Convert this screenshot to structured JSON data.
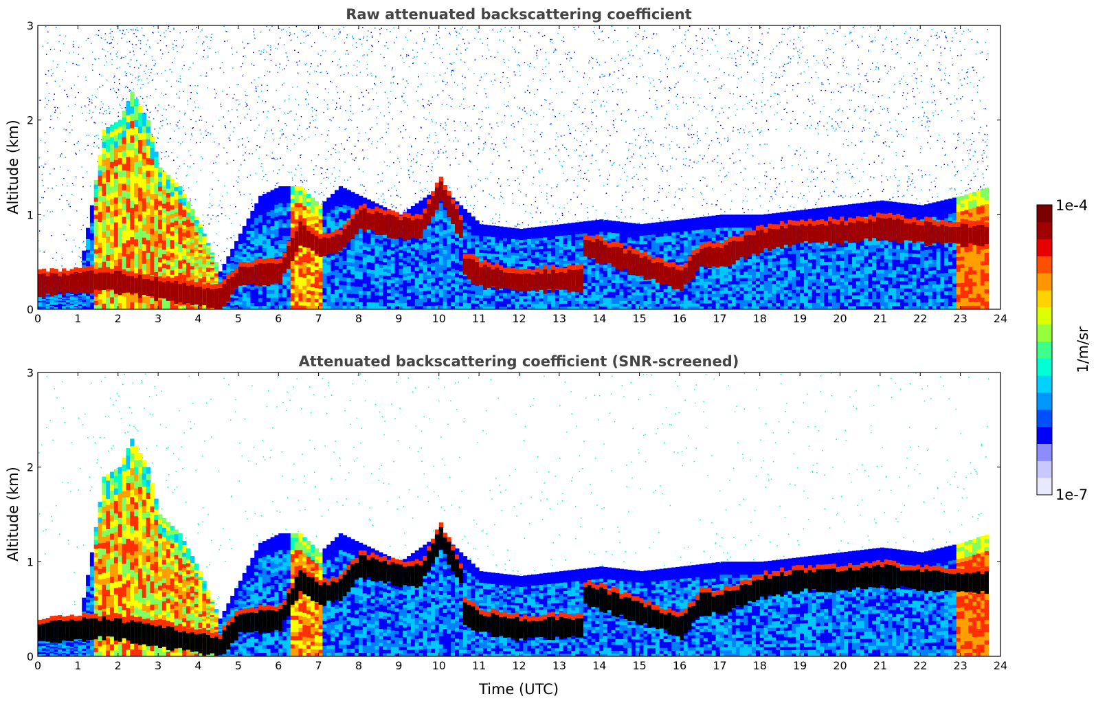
{
  "chart_data": [
    {
      "type": "heatmap",
      "title": "Raw attenuated backscattering coefficient",
      "xlabel": "",
      "ylabel": "Altitude (km)",
      "xlim": [
        0,
        24
      ],
      "ylim": [
        0,
        3
      ],
      "xticks": [
        "0",
        "1",
        "2",
        "3",
        "4",
        "5",
        "6",
        "7",
        "8",
        "9",
        "10",
        "11",
        "12",
        "13",
        "14",
        "15",
        "16",
        "17",
        "18",
        "19",
        "20",
        "21",
        "22",
        "23",
        "24"
      ],
      "yticks": [
        "0",
        "1",
        "2",
        "3"
      ],
      "layers": {
        "aerosol_layer_top_km": [
          [
            0,
            0.38
          ],
          [
            1,
            0.38
          ],
          [
            1.3,
            1.1
          ],
          [
            1.6,
            1.9
          ],
          [
            2,
            2.0
          ],
          [
            2.3,
            2.3
          ],
          [
            2.7,
            2.0
          ],
          [
            3,
            1.5
          ],
          [
            3.5,
            1.3
          ],
          [
            4,
            0.9
          ],
          [
            4.5,
            0.4
          ],
          [
            5,
            0.8
          ],
          [
            5.5,
            1.2
          ],
          [
            6,
            1.3
          ],
          [
            6.5,
            1.3
          ],
          [
            7,
            1.1
          ],
          [
            7.5,
            1.3
          ],
          [
            8,
            1.2
          ],
          [
            9,
            1.0
          ],
          [
            10,
            1.3
          ],
          [
            11,
            0.9
          ],
          [
            12,
            0.85
          ],
          [
            13,
            0.9
          ],
          [
            14,
            0.95
          ],
          [
            15,
            0.9
          ],
          [
            16,
            0.95
          ],
          [
            17,
            1.0
          ],
          [
            18,
            1.0
          ],
          [
            19,
            1.05
          ],
          [
            20,
            1.1
          ],
          [
            21,
            1.15
          ],
          [
            22,
            1.1
          ],
          [
            23,
            1.2
          ],
          [
            23.7,
            1.3
          ]
        ],
        "strong_layer_km": [
          [
            0,
            0.25
          ],
          [
            1,
            0.28
          ],
          [
            1.7,
            0.3
          ],
          [
            4.5,
            0.1
          ],
          [
            5,
            0.35
          ],
          [
            6,
            0.38
          ],
          [
            6.5,
            0.8
          ],
          [
            7,
            0.65
          ],
          [
            7.5,
            0.7
          ],
          [
            8,
            0.95
          ],
          [
            9,
            0.85
          ],
          [
            9.5,
            0.85
          ],
          [
            10,
            1.25
          ],
          [
            10.5,
            0.85
          ],
          [
            10.6,
            0.45
          ],
          [
            11,
            0.35
          ],
          [
            12,
            0.28
          ],
          [
            13,
            0.3
          ],
          [
            13.5,
            0.3
          ],
          [
            13,
            0.72
          ],
          [
            14,
            0.6
          ],
          [
            15,
            0.45
          ],
          [
            16,
            0.3
          ],
          [
            16.5,
            0.55
          ],
          [
            17,
            0.55
          ],
          [
            18,
            0.72
          ],
          [
            19,
            0.8
          ],
          [
            20,
            0.8
          ],
          [
            21,
            0.85
          ],
          [
            22,
            0.8
          ],
          [
            23,
            0.78
          ]
        ]
      },
      "colorscale": [
        "#e8e8ff",
        "#0000ff",
        "#0080ff",
        "#00c8ff",
        "#00ffc0",
        "#80ff60",
        "#ffff00",
        "#ffa000",
        "#ff3000",
        "#a00000",
        "#7a0000"
      ]
    },
    {
      "type": "heatmap",
      "title": "Attenuated backscattering coefficient (SNR-screened)",
      "xlabel": "Time (UTC)",
      "ylabel": "Altitude (km)",
      "xlim": [
        0,
        24
      ],
      "ylim": [
        0,
        3
      ],
      "xticks": [
        "0",
        "1",
        "2",
        "3",
        "4",
        "5",
        "6",
        "7",
        "8",
        "9",
        "10",
        "11",
        "12",
        "13",
        "14",
        "15",
        "16",
        "17",
        "18",
        "19",
        "20",
        "21",
        "22",
        "23",
        "24"
      ],
      "yticks": [
        "0",
        "1",
        "2",
        "3"
      ],
      "colorscale": [
        "#e8e8ff",
        "#0000ff",
        "#0080ff",
        "#00c8ff",
        "#00ffc0",
        "#80ff60",
        "#ffff00",
        "#ffa000",
        "#ff3000",
        "#a00000",
        "#000000"
      ]
    }
  ],
  "colorbar": {
    "max_label": "1e-4",
    "min_label": "1e-7",
    "unit_label": "1/m/sr",
    "colors": [
      "#e8e8ff",
      "#c8c8ff",
      "#8c8cff",
      "#0000ff",
      "#0050ff",
      "#0096ff",
      "#00d2ff",
      "#00ffd2",
      "#3cff8c",
      "#96ff3c",
      "#dcff00",
      "#ffd200",
      "#ff9600",
      "#ff5000",
      "#e60000",
      "#a00000",
      "#7a0000"
    ]
  }
}
